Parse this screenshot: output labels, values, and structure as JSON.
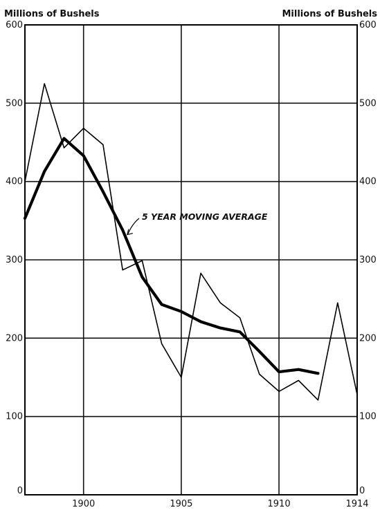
{
  "chart_data": {
    "type": "line",
    "y_unit_left": "Millions of Bushels",
    "y_unit_right": "Millions of Bushels",
    "xlim": [
      1897,
      1914
    ],
    "ylim": [
      0,
      600
    ],
    "x_ticks": [
      1900,
      1905,
      1910,
      1914
    ],
    "y_ticks": [
      0,
      100,
      200,
      300,
      400,
      500,
      600
    ],
    "grid": true,
    "series": [
      {
        "style": "thin",
        "x": [
          1897,
          1898,
          1899,
          1900,
          1901,
          1902,
          1903,
          1904,
          1905,
          1906,
          1907,
          1908,
          1909,
          1910,
          1911,
          1912,
          1913,
          1914
        ],
        "y": [
          400,
          525,
          443,
          468,
          447,
          287,
          299,
          193,
          150,
          283,
          245,
          226,
          154,
          132,
          146,
          121,
          245,
          128
        ]
      },
      {
        "name": "5 YEAR MOVING AVERAGE",
        "style": "thick",
        "x": [
          1897,
          1898,
          1899,
          1900,
          1901,
          1902,
          1903,
          1904,
          1905,
          1906,
          1907,
          1908,
          1909,
          1910,
          1911,
          1912
        ],
        "y": [
          353,
          413,
          455,
          433,
          387,
          338,
          278,
          243,
          234,
          221,
          213,
          208,
          183,
          157,
          160,
          155
        ]
      }
    ],
    "annotations": [
      {
        "text": "5 YEAR MOVING AVERAGE",
        "points_to": {
          "x": 1902.2,
          "y": 333
        }
      }
    ]
  }
}
